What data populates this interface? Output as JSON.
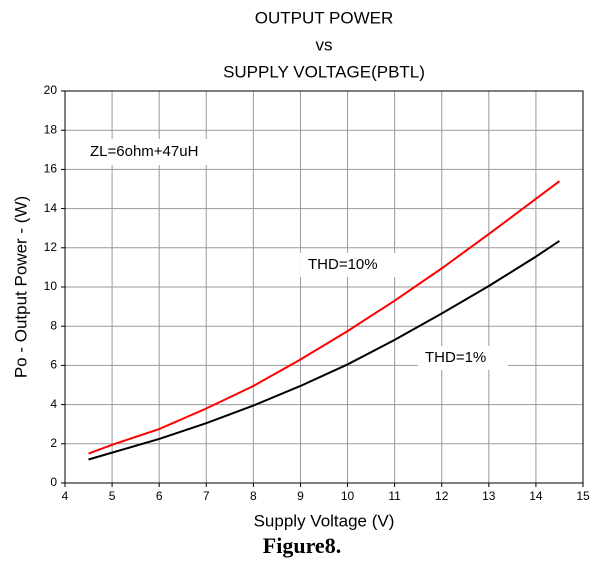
{
  "chart_data": {
    "type": "line",
    "title": [
      "OUTPUT POWER",
      "vs",
      "SUPPLY VOLTAGE(PBTL)"
    ],
    "x_label": "Supply Voltage (V)",
    "y_label": "Po - Output Power - (W)",
    "x": [
      4.5,
      5,
      6,
      7,
      8,
      9,
      10,
      11,
      12,
      13,
      14,
      14.5
    ],
    "series": [
      {
        "name": "THD=10%",
        "color": "#ff0000",
        "values": [
          1.5,
          1.95,
          2.75,
          3.8,
          4.95,
          6.3,
          7.75,
          9.3,
          10.95,
          12.7,
          14.5,
          15.4
        ]
      },
      {
        "name": "THD=1%",
        "color": "#000000",
        "values": [
          1.2,
          1.55,
          2.25,
          3.05,
          3.95,
          4.95,
          6.05,
          7.3,
          8.65,
          10.05,
          11.55,
          12.35
        ]
      }
    ],
    "annotations": [
      "ZL=6ohm+47uH"
    ],
    "xlim": [
      4,
      15
    ],
    "xticks": [
      4,
      5,
      6,
      7,
      8,
      9,
      10,
      11,
      12,
      13,
      14,
      15
    ],
    "ylim": [
      0,
      20
    ],
    "yticks": [
      0,
      2,
      4,
      6,
      8,
      10,
      12,
      14,
      16,
      18,
      20
    ],
    "grid": true
  },
  "caption": "Figure8."
}
